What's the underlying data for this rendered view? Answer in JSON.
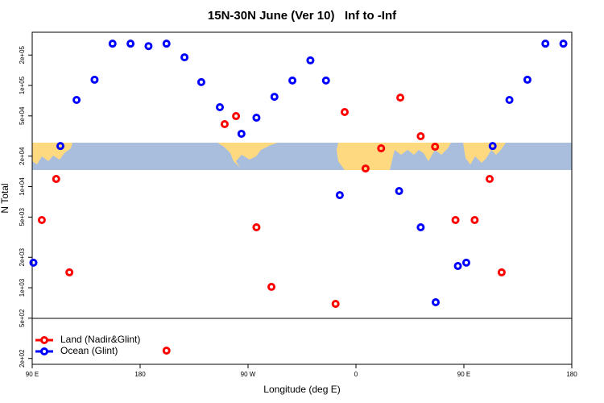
{
  "chart_data": {
    "type": "scatter",
    "title": "15N-30N June (Ver 10)   Inf to -Inf",
    "x_label": "Longitude (deg E)",
    "y_label": "N Total",
    "xlim": [
      90,
      540
    ],
    "xticks": [
      {
        "value": 90,
        "label": "90 E"
      },
      {
        "value": 180,
        "label": "180"
      },
      {
        "value": 270,
        "label": "90 W"
      },
      {
        "value": 360,
        "label": "0"
      },
      {
        "value": 450,
        "label": "90 E"
      },
      {
        "value": 540,
        "label": "180"
      }
    ],
    "ylim": [
      175,
      336000
    ],
    "ylog": true,
    "yticks": [
      {
        "value": 200,
        "label": "2e+02"
      },
      {
        "value": 500,
        "label": "5e+02"
      },
      {
        "value": 1000,
        "label": "1e+03"
      },
      {
        "value": 2000,
        "label": "2e+03"
      },
      {
        "value": 5000,
        "label": "5e+03"
      },
      {
        "value": 10000,
        "label": "1e+04"
      },
      {
        "value": 20000,
        "label": "2e+04"
      },
      {
        "value": 50000,
        "label": "5e+04"
      },
      {
        "value": 100000,
        "label": "1e+05"
      },
      {
        "value": 200000,
        "label": "2e+05"
      }
    ],
    "legend": "bottom-left",
    "series": [
      {
        "name": "Land (Nadir&Glint)",
        "color": "#ff0000",
        "x": [
          98,
          110,
          121,
          202,
          250.5,
          260,
          277,
          289.5,
          343,
          350.6,
          368,
          381,
          397,
          414,
          426,
          443,
          459,
          471.5,
          481.5
        ],
        "values": [
          4670,
          11900,
          1420,
          239,
          41500,
          49800,
          3960,
          1020,
          693,
          54600,
          15100,
          23900,
          75800,
          31500,
          24800,
          4670,
          4670,
          11900,
          1420
        ]
      },
      {
        "name": "Ocean (Glint)",
        "color": "#0000ff",
        "x": [
          91,
          113.5,
          127,
          142,
          157,
          172,
          187,
          202,
          217,
          231,
          246.5,
          264.5,
          277,
          292,
          307,
          322,
          335,
          346.5,
          396,
          414,
          426.5,
          445,
          452,
          474,
          488,
          503,
          518,
          533
        ],
        "values": [
          1770,
          25200,
          71900,
          114000,
          259000,
          259000,
          245000,
          259000,
          190000,
          108000,
          61000,
          33300,
          48000,
          77300,
          112000,
          177000,
          112000,
          8240,
          9040,
          3960,
          719,
          1640,
          1770,
          25200,
          71900,
          114000,
          259000,
          259000
        ]
      }
    ]
  }
}
